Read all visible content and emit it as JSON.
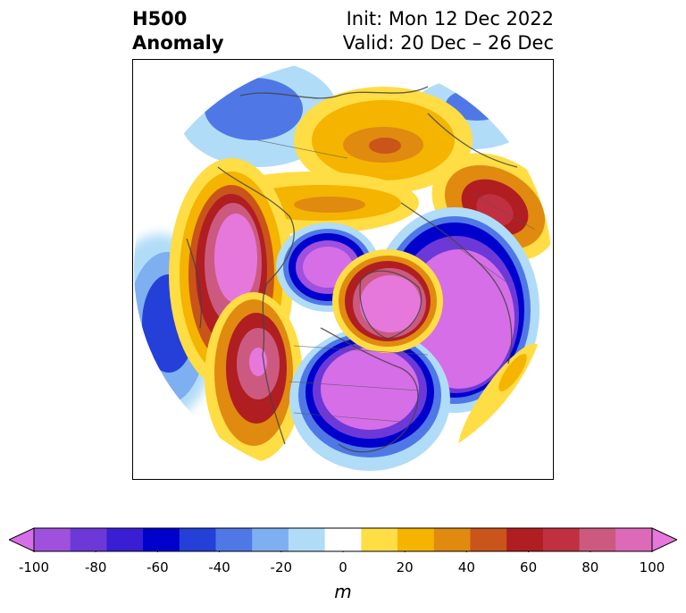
{
  "title": {
    "left_line1": "H500",
    "left_line2": "Anomaly",
    "right_line1": "Init: Mon 12 Dec 2022",
    "right_line2": "Valid: 20 Dec – 26 Dec"
  },
  "map": {
    "projection": "north-polar-stereographic",
    "variable": "500 hPa geopotential height anomaly",
    "features": [
      {
        "name": "negative-anomaly-west-pacific",
        "sign": "negative",
        "peak_m": -50
      },
      {
        "name": "positive-anomaly-alaska-ridge",
        "sign": "positive",
        "peak_m": 100
      },
      {
        "name": "positive-anomaly-west-north-america",
        "sign": "positive",
        "peak_m": 80
      },
      {
        "name": "negative-anomaly-central-eastern-us-trough",
        "sign": "negative",
        "peak_m": -100
      },
      {
        "name": "positive-anomaly-greenland-block",
        "sign": "positive",
        "peak_m": 100
      },
      {
        "name": "negative-anomaly-siberia-arctic",
        "sign": "negative",
        "peak_m": -100
      },
      {
        "name": "negative-anomaly-europe",
        "sign": "negative",
        "peak_m": -100
      },
      {
        "name": "positive-anomaly-eastern-asia",
        "sign": "positive",
        "peak_m": 60
      },
      {
        "name": "positive-anomaly-atlantic",
        "sign": "positive",
        "peak_m": 30
      }
    ]
  },
  "colorbar": {
    "unit": "m",
    "ticks": [
      "-100",
      "-80",
      "-60",
      "-40",
      "-20",
      "0",
      "20",
      "40",
      "60",
      "80",
      "100"
    ],
    "colors": [
      "#d66ee8",
      "#9f50dc",
      "#6c39d8",
      "#3a1ed4",
      "#0000cc",
      "#2440d8",
      "#4f78e6",
      "#7eaff0",
      "#b0dcf8",
      "#ffffff",
      "#ffdd44",
      "#f4b400",
      "#e08a10",
      "#c9551a",
      "#b01e22",
      "#c03040",
      "#cc5a80",
      "#dc6ab8",
      "#e678dc"
    ]
  }
}
